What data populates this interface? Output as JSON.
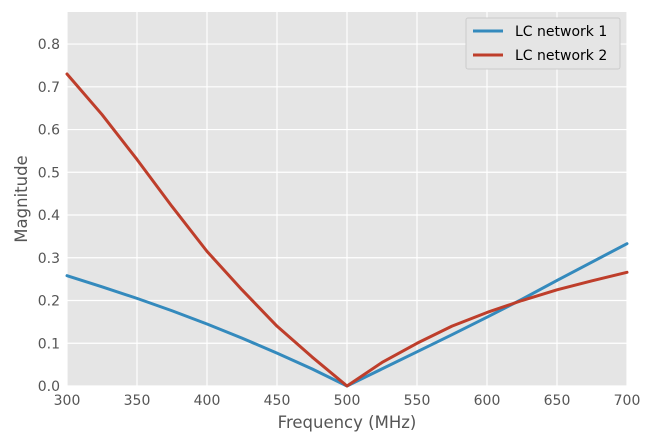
{
  "chart_data": {
    "type": "line",
    "title": "",
    "xlabel": "Frequency (MHz)",
    "ylabel": "Magnitude",
    "xlim": [
      300,
      700
    ],
    "ylim": [
      0,
      0.875
    ],
    "x_ticks": [
      300,
      350,
      400,
      450,
      500,
      550,
      600,
      650,
      700
    ],
    "y_ticks": [
      0.0,
      0.1,
      0.2,
      0.3,
      0.4,
      0.5,
      0.6,
      0.7,
      0.8
    ],
    "grid": true,
    "legend_position": "top-right",
    "x": [
      300,
      325,
      350,
      375,
      400,
      425,
      450,
      475,
      500,
      525,
      550,
      575,
      600,
      625,
      650,
      675,
      700
    ],
    "series": [
      {
        "name": "LC network 1",
        "color": "#348ABD",
        "values": [
          0.258,
          0.232,
          0.205,
          0.176,
          0.145,
          0.112,
          0.077,
          0.04,
          0.0,
          0.04,
          0.08,
          0.12,
          0.161,
          0.203,
          0.247,
          0.29,
          0.333
        ]
      },
      {
        "name": "LC network 2",
        "color": "#BE3E2B",
        "values": [
          0.73,
          0.635,
          0.53,
          0.42,
          0.315,
          0.225,
          0.14,
          0.068,
          0.0,
          0.055,
          0.1,
          0.14,
          0.172,
          0.2,
          0.225,
          0.246,
          0.266
        ]
      }
    ]
  }
}
